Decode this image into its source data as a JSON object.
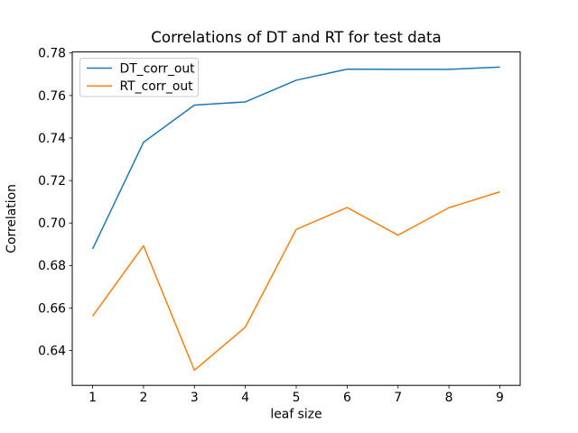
{
  "chart_data": {
    "type": "line",
    "title": "Correlations of DT and RT for test data",
    "xlabel": "leaf size",
    "ylabel": "Correlation",
    "x": [
      1,
      2,
      3,
      4,
      5,
      6,
      7,
      8,
      9
    ],
    "series": [
      {
        "name": "DT_corr_out",
        "color": "#1f77b4",
        "values": [
          0.6878,
          0.738,
          0.7555,
          0.757,
          0.7672,
          0.7724,
          0.7723,
          0.7723,
          0.7734
        ]
      },
      {
        "name": "RT_corr_out",
        "color": "#ff7f0e",
        "values": [
          0.6562,
          0.6893,
          0.6307,
          0.651,
          0.697,
          0.7073,
          0.6943,
          0.7072,
          0.7147
        ]
      }
    ],
    "xlim": [
      0.6,
      9.4
    ],
    "ylim": [
      0.6236,
      0.7805
    ],
    "xtick_values": [
      1,
      2,
      3,
      4,
      5,
      6,
      7,
      8,
      9
    ],
    "xtick_labels": [
      "1",
      "2",
      "3",
      "4",
      "5",
      "6",
      "7",
      "8",
      "9"
    ],
    "ytick_values": [
      0.64,
      0.66,
      0.68,
      0.7,
      0.72,
      0.74,
      0.76,
      0.78
    ],
    "ytick_labels": [
      "0.64",
      "0.66",
      "0.68",
      "0.70",
      "0.72",
      "0.74",
      "0.76",
      "0.78"
    ],
    "grid": false,
    "legend_position": "upper left",
    "axis_color": "#000000",
    "background": "#ffffff",
    "legend_edge_color": "#cccccc"
  }
}
